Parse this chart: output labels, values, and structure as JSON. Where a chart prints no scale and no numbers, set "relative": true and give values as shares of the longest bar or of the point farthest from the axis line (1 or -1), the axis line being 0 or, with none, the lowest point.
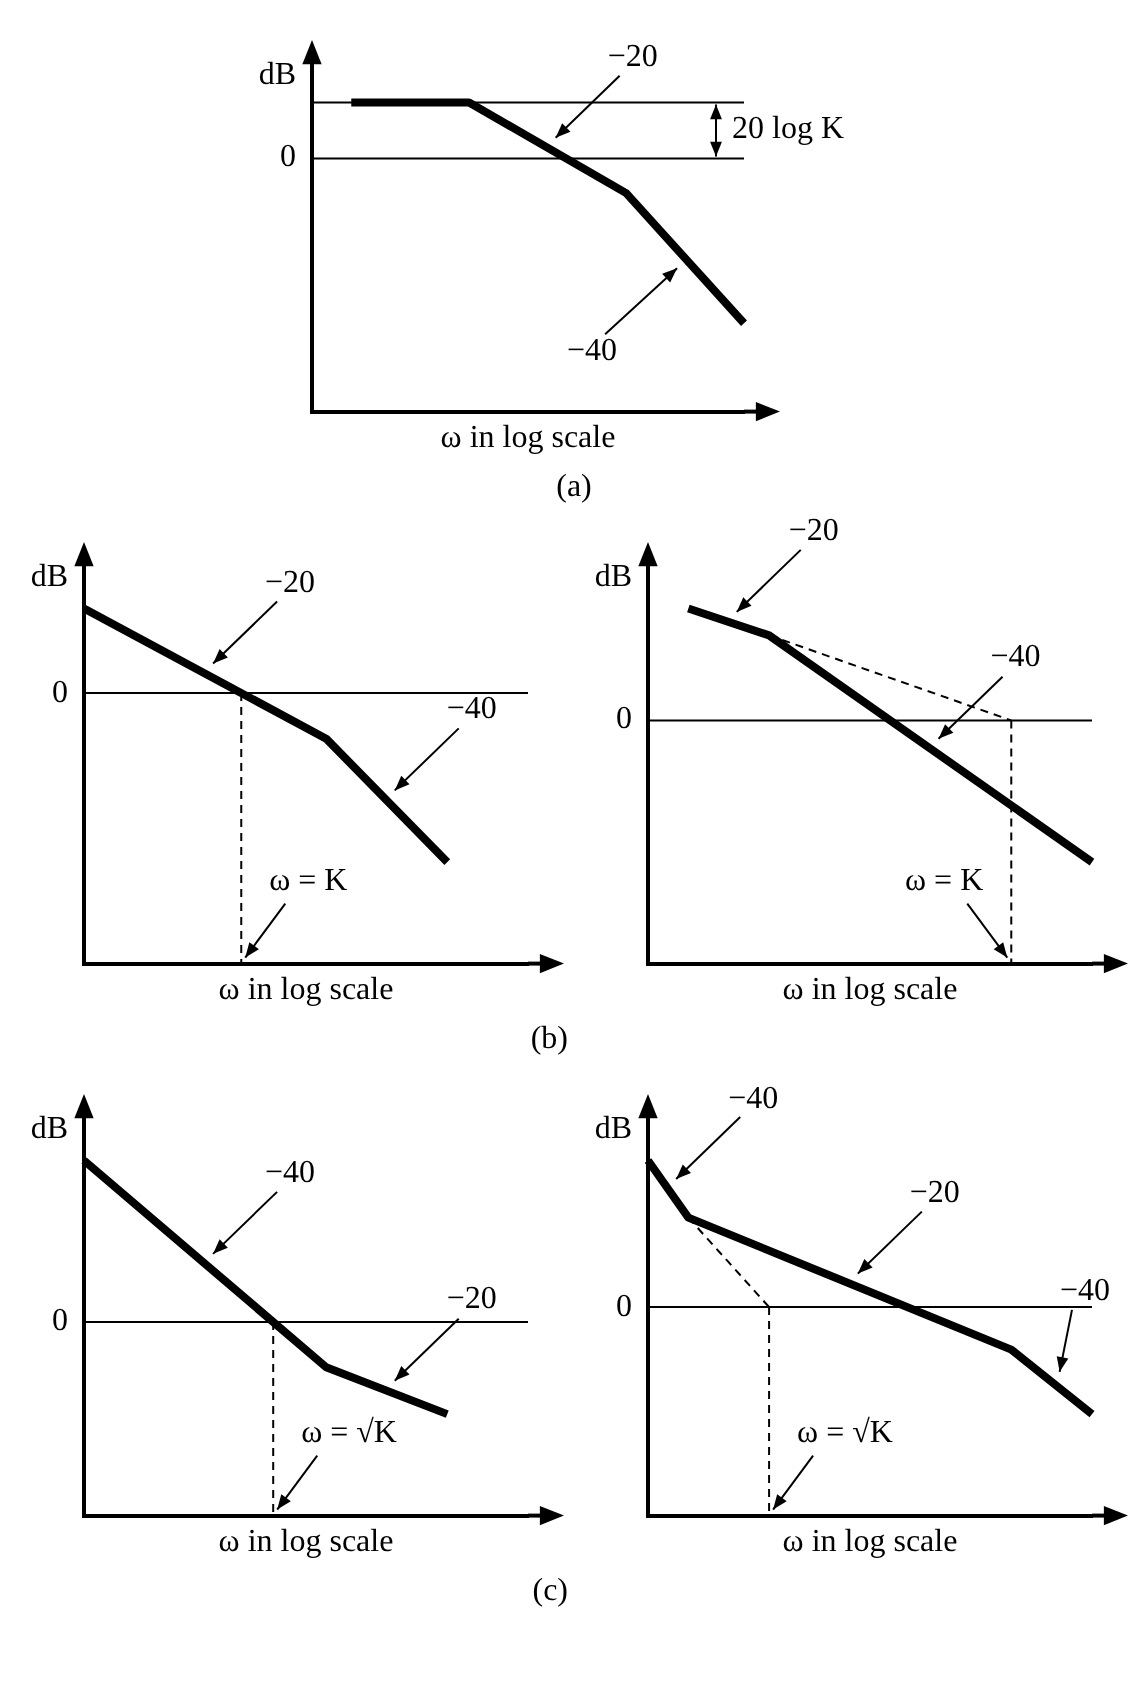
{
  "chart_data": [
    {
      "type": "line",
      "relative": true,
      "title": "(a)",
      "ylabel": "dB",
      "xlabel": "ω in log scale",
      "tick_labels": false,
      "legend": false,
      "categories": [
        null,
        null,
        null,
        null,
        null,
        null,
        null,
        null,
        null,
        null,
        null,
        null
      ],
      "series": [
        {
          "color": "#000000",
          "values": [
            null,
            0.34,
            null,
            null,
            0.34,
            null,
            null,
            null,
            -0.21,
            null,
            null,
            -1
          ]
        }
      ],
      "ref_lines": [
        {
          "axis": "y",
          "value": 0.34,
          "label": null
        },
        {
          "axis": "y",
          "value": 0,
          "label": "0"
        }
      ],
      "annotations": [
        "20 log K",
        "−20",
        "−40"
      ]
    },
    {
      "type": "line",
      "relative": true,
      "title": "(b)",
      "ylabel": "dB",
      "xlabel": "ω in log scale",
      "tick_labels": false,
      "legend": false,
      "categories": [
        null,
        null,
        null,
        null,
        null,
        null,
        null,
        null,
        null,
        null,
        null,
        null
      ],
      "series": [
        {
          "color": "#000000",
          "values": [
            0.5,
            null,
            null,
            null,
            null,
            null,
            -0.27,
            null,
            null,
            -1,
            null,
            null
          ]
        }
      ],
      "ref_lines": [
        {
          "axis": "y",
          "value": 0,
          "label": "0"
        }
      ],
      "annotations": [
        "ω = K",
        "−20",
        "−40"
      ]
    },
    {
      "type": "line",
      "relative": true,
      "ylabel": "dB",
      "xlabel": "ω in log scale",
      "tick_labels": false,
      "legend": false,
      "categories": [
        null,
        null,
        null,
        null,
        null,
        null,
        null,
        null,
        null,
        null,
        null,
        null
      ],
      "series": [
        {
          "color": "#000000",
          "values": [
            null,
            0.79,
            null,
            0.6,
            null,
            null,
            null,
            null,
            null,
            null,
            null,
            -1
          ]
        },
        {
          "color": "#000000",
          "line_style": "dashed",
          "values": [
            null,
            null,
            null,
            0.6,
            null,
            null,
            null,
            null,
            null,
            0,
            null,
            null
          ]
        }
      ],
      "ref_lines": [
        {
          "axis": "y",
          "value": 0,
          "label": "0"
        }
      ],
      "annotations": [
        "ω = K",
        "−20",
        "−40"
      ]
    },
    {
      "type": "line",
      "relative": true,
      "title": "(c)",
      "ylabel": "dB",
      "xlabel": "ω in log scale",
      "tick_labels": false,
      "legend": false,
      "categories": [
        null,
        null,
        null,
        null,
        null,
        null,
        null,
        null,
        null,
        null,
        null,
        null
      ],
      "series": [
        {
          "color": "#000000",
          "values": [
            1,
            null,
            null,
            null,
            null,
            null,
            -0.28,
            null,
            null,
            -0.57,
            null,
            null
          ]
        }
      ],
      "ref_lines": [
        {
          "axis": "y",
          "value": 0,
          "label": "0"
        }
      ],
      "annotations": [
        "ω = √K",
        "−40",
        "−20"
      ]
    },
    {
      "type": "line",
      "relative": true,
      "ylabel": "dB",
      "xlabel": "ω in log scale",
      "tick_labels": false,
      "legend": false,
      "categories": [
        null,
        null,
        null,
        null,
        null,
        null,
        null,
        null,
        null,
        null,
        null,
        null
      ],
      "series": [
        {
          "color": "#000000",
          "values": [
            1,
            0.61,
            null,
            null,
            null,
            null,
            null,
            null,
            null,
            -0.29,
            null,
            -0.73
          ]
        },
        {
          "color": "#000000",
          "line_style": "dashed",
          "values": [
            null,
            0.61,
            null,
            0,
            null,
            null,
            null,
            null,
            null,
            null,
            null,
            null
          ]
        }
      ],
      "ref_lines": [
        {
          "axis": "y",
          "value": 0,
          "label": "0"
        }
      ],
      "annotations": [
        "ω = √K",
        "−40",
        "−20",
        "−40"
      ]
    }
  ]
}
